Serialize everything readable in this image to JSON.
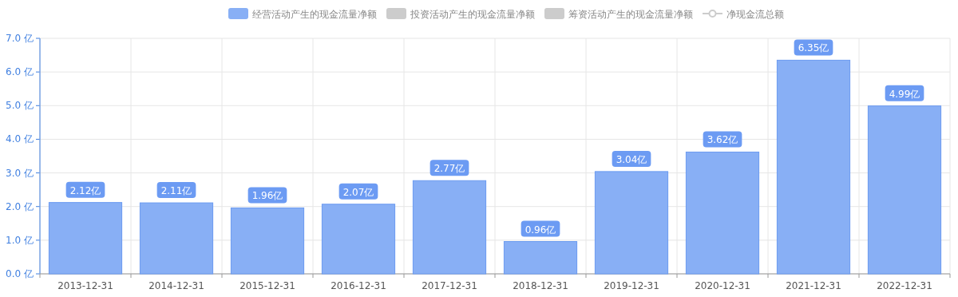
{
  "chart_data": {
    "type": "bar",
    "categories": [
      "2013-12-31",
      "2014-12-31",
      "2015-12-31",
      "2016-12-31",
      "2017-12-31",
      "2018-12-31",
      "2019-12-31",
      "2020-12-31",
      "2021-12-31",
      "2022-12-31"
    ],
    "series": [
      {
        "name": "经营活动产生的现金流量净额",
        "color": "#88aff5",
        "values": [
          2.12,
          2.11,
          1.96,
          2.07,
          2.77,
          0.96,
          3.04,
          3.62,
          6.35,
          4.99
        ],
        "value_labels": [
          "2.12亿",
          "2.11亿",
          "1.96亿",
          "2.07亿",
          "2.77亿",
          "0.96亿",
          "3.04亿",
          "3.62亿",
          "6.35亿",
          "4.99亿"
        ]
      },
      {
        "name": "投资活动产生的现金流量净额",
        "color": "#cccccc",
        "values": [
          null,
          null,
          null,
          null,
          null,
          null,
          null,
          null,
          null,
          null
        ]
      },
      {
        "name": "筹资活动产生的现金流量净额",
        "color": "#cccccc",
        "values": [
          null,
          null,
          null,
          null,
          null,
          null,
          null,
          null,
          null,
          null
        ]
      },
      {
        "name": "净现金流总额",
        "type": "line",
        "marker": "circle",
        "color": "#cccccc",
        "values": [
          null,
          null,
          null,
          null,
          null,
          null,
          null,
          null,
          null,
          null
        ]
      }
    ],
    "ylim": [
      0,
      7
    ],
    "yticks": [
      {
        "value": 0,
        "label": "0.0 亿"
      },
      {
        "value": 1,
        "label": "1.0 亿"
      },
      {
        "value": 2,
        "label": "2.0 亿"
      },
      {
        "value": 3,
        "label": "3.0 亿"
      },
      {
        "value": 4,
        "label": "4.0 亿"
      },
      {
        "value": 5,
        "label": "5.0 亿"
      },
      {
        "value": 6,
        "label": "6.0 亿"
      },
      {
        "value": 7,
        "label": "7.0 亿"
      }
    ],
    "grid": true,
    "legend": "top"
  }
}
